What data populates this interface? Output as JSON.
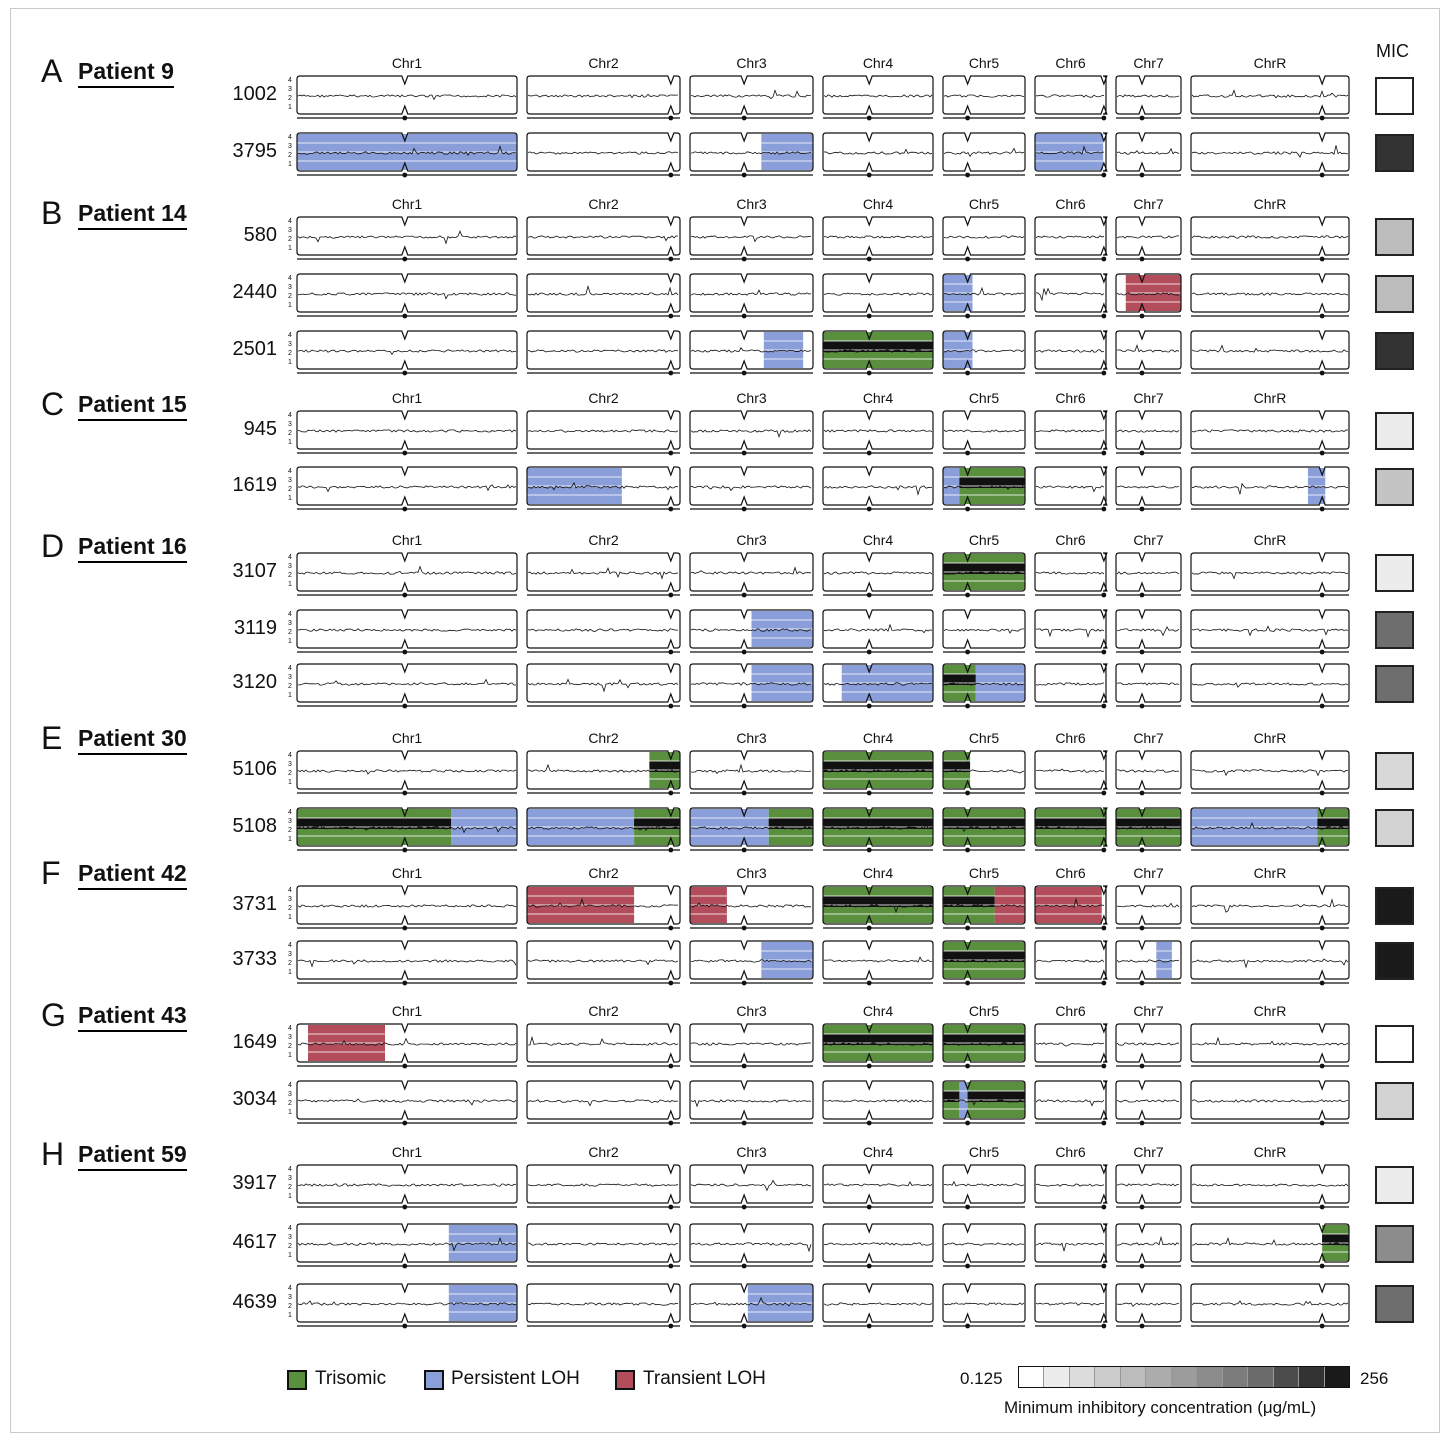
{
  "colors": {
    "trisomic": "#5a8f3e",
    "persistent_loh": "#8a9fd9",
    "transient_loh": "#b34c5b"
  },
  "chromosomes": [
    "Chr1",
    "Chr2",
    "Chr3",
    "Chr4",
    "Chr5",
    "Chr6",
    "Chr7",
    "ChrR"
  ],
  "y_ticks": [
    "4",
    "3",
    "2",
    "1"
  ],
  "mic_title": "MIC",
  "panels": [
    {
      "letter": "A",
      "patient": "Patient 9",
      "samples": [
        {
          "id": "1002",
          "mic": "#ffffff",
          "segments": []
        },
        {
          "id": "3795",
          "mic": "#333333",
          "segments": [
            {
              "chr": "Chr1",
              "start": 0,
              "end": 1,
              "type": "persistent_loh"
            },
            {
              "chr": "Chr3",
              "start": 0.58,
              "end": 1,
              "type": "persistent_loh"
            },
            {
              "chr": "Chr6",
              "start": 0,
              "end": 0.96,
              "type": "persistent_loh"
            }
          ]
        }
      ]
    },
    {
      "letter": "B",
      "patient": "Patient 14",
      "samples": [
        {
          "id": "580",
          "mic": "#bcbcbc",
          "segments": []
        },
        {
          "id": "2440",
          "mic": "#bcbcbc",
          "segments": [
            {
              "chr": "Chr5",
              "start": 0,
              "end": 0.36,
              "type": "persistent_loh"
            },
            {
              "chr": "Chr7",
              "start": 0.15,
              "end": 1,
              "type": "transient_loh"
            }
          ]
        },
        {
          "id": "2501",
          "mic": "#333333",
          "segments": [
            {
              "chr": "Chr3",
              "start": 0.6,
              "end": 0.92,
              "type": "persistent_loh"
            },
            {
              "chr": "Chr4",
              "start": 0,
              "end": 1,
              "type": "trisomic"
            },
            {
              "chr": "Chr5",
              "start": 0,
              "end": 0.36,
              "type": "persistent_loh"
            }
          ]
        }
      ]
    },
    {
      "letter": "C",
      "patient": "Patient 15",
      "samples": [
        {
          "id": "945",
          "mic": "#ececec",
          "segments": []
        },
        {
          "id": "1619",
          "mic": "#c4c4c4",
          "segments": [
            {
              "chr": "Chr2",
              "start": 0,
              "end": 0.62,
              "type": "persistent_loh"
            },
            {
              "chr": "Chr5",
              "start": 0,
              "end": 0.2,
              "type": "persistent_loh"
            },
            {
              "chr": "Chr5",
              "start": 0.2,
              "end": 1,
              "type": "trisomic"
            },
            {
              "chr": "ChrR",
              "start": 0.74,
              "end": 0.85,
              "type": "persistent_loh"
            }
          ]
        }
      ]
    },
    {
      "letter": "D",
      "patient": "Patient 16",
      "samples": [
        {
          "id": "3107",
          "mic": "#ececec",
          "segments": [
            {
              "chr": "Chr5",
              "start": 0,
              "end": 1,
              "type": "trisomic"
            }
          ]
        },
        {
          "id": "3119",
          "mic": "#6e6e6e",
          "segments": [
            {
              "chr": "Chr3",
              "start": 0.5,
              "end": 1,
              "type": "persistent_loh"
            }
          ]
        },
        {
          "id": "3120",
          "mic": "#6e6e6e",
          "segments": [
            {
              "chr": "Chr3",
              "start": 0.5,
              "end": 1,
              "type": "persistent_loh"
            },
            {
              "chr": "Chr4",
              "start": 0.17,
              "end": 1,
              "type": "persistent_loh"
            },
            {
              "chr": "Chr5",
              "start": 0,
              "end": 0.4,
              "type": "trisomic"
            },
            {
              "chr": "Chr5",
              "start": 0.4,
              "end": 1,
              "type": "persistent_loh"
            }
          ]
        }
      ]
    },
    {
      "letter": "E",
      "patient": "Patient 30",
      "samples": [
        {
          "id": "5106",
          "mic": "#d8d8d8",
          "segments": [
            {
              "chr": "Chr2",
              "start": 0.8,
              "end": 1,
              "type": "trisomic"
            },
            {
              "chr": "Chr4",
              "start": 0,
              "end": 1,
              "type": "trisomic"
            },
            {
              "chr": "Chr5",
              "start": 0,
              "end": 0.33,
              "type": "trisomic"
            }
          ]
        },
        {
          "id": "5108",
          "mic": "#d2d2d2",
          "segments": [
            {
              "chr": "Chr1",
              "start": 0,
              "end": 0.7,
              "type": "trisomic"
            },
            {
              "chr": "Chr1",
              "start": 0.7,
              "end": 1,
              "type": "persistent_loh"
            },
            {
              "chr": "Chr2",
              "start": 0,
              "end": 0.7,
              "type": "persistent_loh"
            },
            {
              "chr": "Chr2",
              "start": 0.7,
              "end": 1,
              "type": "trisomic"
            },
            {
              "chr": "Chr3",
              "start": 0,
              "end": 0.64,
              "type": "persistent_loh"
            },
            {
              "chr": "Chr3",
              "start": 0.64,
              "end": 1,
              "type": "trisomic"
            },
            {
              "chr": "Chr4",
              "start": 0,
              "end": 1,
              "type": "trisomic"
            },
            {
              "chr": "Chr5",
              "start": 0,
              "end": 1,
              "type": "trisomic"
            },
            {
              "chr": "Chr6",
              "start": 0,
              "end": 1,
              "type": "trisomic"
            },
            {
              "chr": "Chr7",
              "start": 0,
              "end": 1,
              "type": "trisomic"
            },
            {
              "chr": "ChrR",
              "start": 0,
              "end": 0.8,
              "type": "persistent_loh"
            },
            {
              "chr": "ChrR",
              "start": 0.8,
              "end": 1,
              "type": "trisomic"
            }
          ]
        }
      ]
    },
    {
      "letter": "F",
      "patient": "Patient 42",
      "samples": [
        {
          "id": "3731",
          "mic": "#1a1a1a",
          "segments": [
            {
              "chr": "Chr2",
              "start": 0,
              "end": 0.7,
              "type": "transient_loh"
            },
            {
              "chr": "Chr3",
              "start": 0,
              "end": 0.3,
              "type": "transient_loh"
            },
            {
              "chr": "Chr4",
              "start": 0,
              "end": 1,
              "type": "trisomic"
            },
            {
              "chr": "Chr5",
              "start": 0,
              "end": 0.63,
              "type": "trisomic"
            },
            {
              "chr": "Chr5",
              "start": 0.63,
              "end": 1,
              "type": "transient_loh"
            },
            {
              "chr": "Chr6",
              "start": 0,
              "end": 0.94,
              "type": "transient_loh"
            }
          ]
        },
        {
          "id": "3733",
          "mic": "#1a1a1a",
          "segments": [
            {
              "chr": "Chr3",
              "start": 0.58,
              "end": 1,
              "type": "persistent_loh"
            },
            {
              "chr": "Chr5",
              "start": 0,
              "end": 1,
              "type": "trisomic"
            },
            {
              "chr": "Chr7",
              "start": 0.62,
              "end": 0.86,
              "type": "persistent_loh"
            }
          ]
        }
      ]
    },
    {
      "letter": "G",
      "patient": "Patient 43",
      "samples": [
        {
          "id": "1649",
          "mic": "#ffffff",
          "segments": [
            {
              "chr": "Chr1",
              "start": 0.05,
              "end": 0.4,
              "type": "transient_loh"
            },
            {
              "chr": "Chr4",
              "start": 0,
              "end": 1,
              "type": "trisomic"
            },
            {
              "chr": "Chr5",
              "start": 0,
              "end": 1,
              "type": "trisomic"
            }
          ]
        },
        {
          "id": "3034",
          "mic": "#d2d2d2",
          "segments": [
            {
              "chr": "Chr5",
              "start": 0,
              "end": 0.2,
              "type": "trisomic"
            },
            {
              "chr": "Chr5",
              "start": 0.2,
              "end": 0.3,
              "type": "persistent_loh"
            },
            {
              "chr": "Chr5",
              "start": 0.3,
              "end": 1,
              "type": "trisomic"
            }
          ]
        }
      ]
    },
    {
      "letter": "H",
      "patient": "Patient 59",
      "samples": [
        {
          "id": "3917",
          "mic": "#ececec",
          "segments": []
        },
        {
          "id": "4617",
          "mic": "#8c8c8c",
          "segments": [
            {
              "chr": "Chr1",
              "start": 0.69,
              "end": 1,
              "type": "persistent_loh"
            },
            {
              "chr": "ChrR",
              "start": 0.83,
              "end": 1,
              "type": "trisomic"
            }
          ]
        },
        {
          "id": "4639",
          "mic": "#6e6e6e",
          "segments": [
            {
              "chr": "Chr1",
              "start": 0.69,
              "end": 1,
              "type": "persistent_loh"
            },
            {
              "chr": "Chr3",
              "start": 0.47,
              "end": 1,
              "type": "persistent_loh"
            }
          ]
        }
      ]
    }
  ],
  "legend": {
    "trisomic": "Trisomic",
    "persistent_loh": "Persistent LOH",
    "transient_loh": "Transient LOH"
  },
  "scale": {
    "min_label": "0.125",
    "max_label": "256",
    "title": "Minimum inhibitory concentration (μg/mL)",
    "colors": [
      "#ffffff",
      "#ececec",
      "#dcdcdc",
      "#cccccc",
      "#bcbcbc",
      "#acacac",
      "#9c9c9c",
      "#8c8c8c",
      "#7c7c7c",
      "#6c6c6c",
      "#4c4c4c",
      "#333333",
      "#1a1a1a"
    ]
  }
}
